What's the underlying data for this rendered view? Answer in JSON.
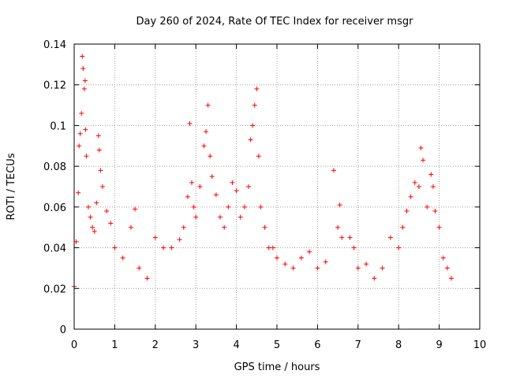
{
  "chart_data": {
    "type": "scatter",
    "title": "Day 260 of 2024, Rate Of TEC Index for receiver msgr",
    "xlabel": "GPS time / hours",
    "ylabel": "ROTI / TECUs",
    "xlim": [
      0,
      10
    ],
    "ylim": [
      0,
      0.14
    ],
    "xticks": [
      0,
      1,
      2,
      3,
      4,
      5,
      6,
      7,
      8,
      9,
      10
    ],
    "yticks": [
      0,
      0.02,
      0.04,
      0.06,
      0.08,
      0.1,
      0.12,
      0.14
    ],
    "xtick_labels": [
      "0",
      "1",
      "2",
      "3",
      "4",
      "5",
      "6",
      "7",
      "8",
      "9",
      "10"
    ],
    "ytick_labels": [
      "0",
      "0.02",
      "0.04",
      "0.06",
      "0.08",
      "0.1",
      "0.12",
      "0.14"
    ],
    "grid": true,
    "marker": "+",
    "color": "#ff0000",
    "series": [
      {
        "name": "ROTI",
        "points": [
          [
            0.0,
            0.021
          ],
          [
            0.05,
            0.043
          ],
          [
            0.1,
            0.067
          ],
          [
            0.15,
            0.096
          ],
          [
            0.2,
            0.134
          ],
          [
            0.22,
            0.128
          ],
          [
            0.25,
            0.118
          ],
          [
            0.27,
            0.122
          ],
          [
            0.18,
            0.106
          ],
          [
            0.12,
            0.09
          ],
          [
            0.28,
            0.098
          ],
          [
            0.3,
            0.085
          ],
          [
            0.35,
            0.06
          ],
          [
            0.4,
            0.055
          ],
          [
            0.45,
            0.05
          ],
          [
            0.5,
            0.048
          ],
          [
            0.55,
            0.062
          ],
          [
            0.6,
            0.095
          ],
          [
            0.62,
            0.088
          ],
          [
            0.65,
            0.078
          ],
          [
            0.7,
            0.07
          ],
          [
            0.8,
            0.058
          ],
          [
            0.9,
            0.052
          ],
          [
            1.0,
            0.04
          ],
          [
            1.2,
            0.035
          ],
          [
            1.4,
            0.05
          ],
          [
            1.5,
            0.059
          ],
          [
            1.6,
            0.03
          ],
          [
            1.8,
            0.025
          ],
          [
            2.0,
            0.045
          ],
          [
            2.2,
            0.04
          ],
          [
            2.4,
            0.04
          ],
          [
            2.6,
            0.044
          ],
          [
            2.7,
            0.05
          ],
          [
            2.8,
            0.065
          ],
          [
            2.85,
            0.101
          ],
          [
            2.9,
            0.072
          ],
          [
            2.95,
            0.06
          ],
          [
            3.0,
            0.055
          ],
          [
            3.1,
            0.07
          ],
          [
            3.2,
            0.09
          ],
          [
            3.25,
            0.097
          ],
          [
            3.3,
            0.11
          ],
          [
            3.35,
            0.085
          ],
          [
            3.4,
            0.075
          ],
          [
            3.5,
            0.066
          ],
          [
            3.6,
            0.055
          ],
          [
            3.7,
            0.05
          ],
          [
            3.8,
            0.06
          ],
          [
            3.9,
            0.072
          ],
          [
            4.0,
            0.068
          ],
          [
            4.1,
            0.055
          ],
          [
            4.2,
            0.06
          ],
          [
            4.3,
            0.07
          ],
          [
            4.35,
            0.093
          ],
          [
            4.4,
            0.1
          ],
          [
            4.45,
            0.11
          ],
          [
            4.5,
            0.118
          ],
          [
            4.55,
            0.085
          ],
          [
            4.6,
            0.06
          ],
          [
            4.7,
            0.05
          ],
          [
            4.8,
            0.04
          ],
          [
            4.9,
            0.04
          ],
          [
            5.0,
            0.035
          ],
          [
            5.2,
            0.032
          ],
          [
            5.4,
            0.03
          ],
          [
            5.6,
            0.035
          ],
          [
            5.8,
            0.038
          ],
          [
            6.0,
            0.03
          ],
          [
            6.2,
            0.033
          ],
          [
            6.4,
            0.078
          ],
          [
            6.5,
            0.05
          ],
          [
            6.55,
            0.061
          ],
          [
            6.6,
            0.045
          ],
          [
            6.8,
            0.045
          ],
          [
            6.9,
            0.04
          ],
          [
            7.0,
            0.03
          ],
          [
            7.2,
            0.032
          ],
          [
            7.4,
            0.025
          ],
          [
            7.6,
            0.03
          ],
          [
            7.8,
            0.045
          ],
          [
            8.0,
            0.04
          ],
          [
            8.1,
            0.05
          ],
          [
            8.2,
            0.058
          ],
          [
            8.3,
            0.065
          ],
          [
            8.4,
            0.072
          ],
          [
            8.5,
            0.07
          ],
          [
            8.55,
            0.089
          ],
          [
            8.6,
            0.083
          ],
          [
            8.7,
            0.06
          ],
          [
            8.8,
            0.076
          ],
          [
            8.85,
            0.07
          ],
          [
            8.9,
            0.058
          ],
          [
            9.0,
            0.05
          ],
          [
            9.1,
            0.035
          ],
          [
            9.2,
            0.03
          ],
          [
            9.3,
            0.025
          ]
        ]
      }
    ]
  }
}
